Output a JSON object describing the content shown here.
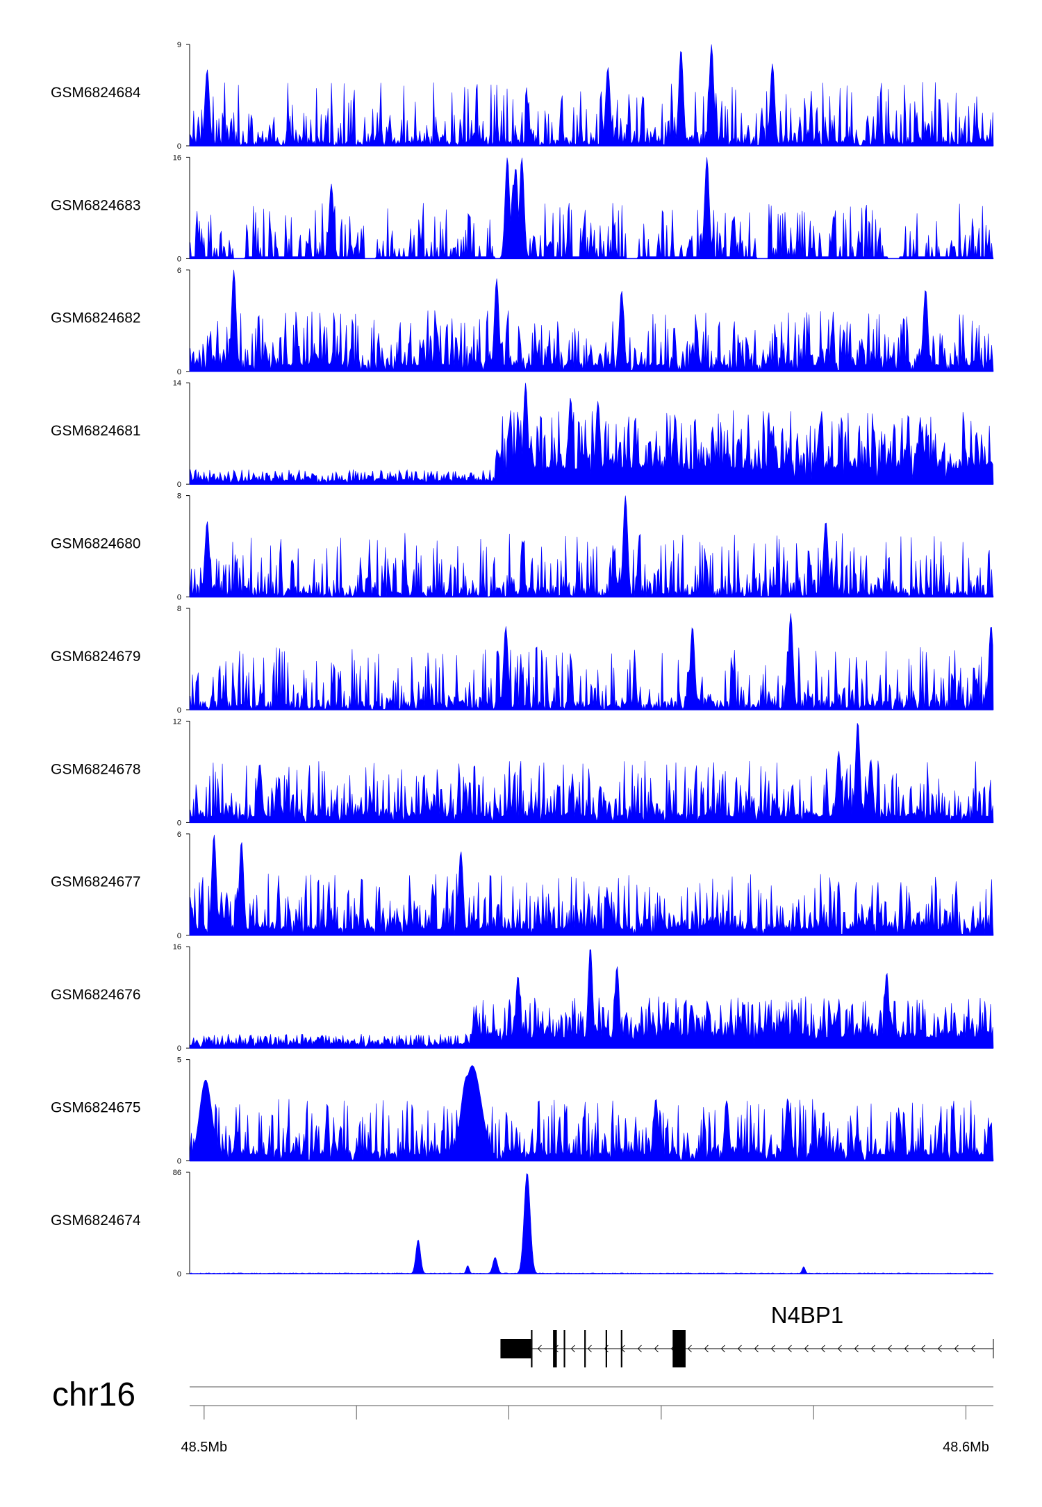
{
  "chart_data": {
    "type": "area",
    "x_unit": "Mb",
    "x_range": [
      48.4981,
      48.6036
    ],
    "color": "#0000ff",
    "tracks": [
      {
        "name": "GSM6824684",
        "ymax": 9,
        "ylim": [
          0,
          9
        ],
        "pattern": "sparse",
        "seed": 11,
        "peaks": [
          [
            48.5626,
            0.0003,
            8.6
          ],
          [
            48.5666,
            0.0003,
            9.0
          ],
          [
            48.5746,
            0.0003,
            7.3
          ],
          [
            48.553,
            0.0003,
            7.0
          ],
          [
            48.5004,
            0.0003,
            6.8
          ]
        ]
      },
      {
        "name": "GSM6824683",
        "ymax": 16,
        "ylim": [
          0,
          16
        ],
        "pattern": "gappy",
        "seed": 23,
        "peaks": [
          [
            48.5398,
            0.0003,
            16.0
          ],
          [
            48.5417,
            0.0003,
            16.0
          ],
          [
            48.5409,
            0.0003,
            14.5
          ],
          [
            48.566,
            0.0003,
            16.0
          ],
          [
            48.5167,
            0.0003,
            11.8
          ],
          [
            48.5406,
            0.0003,
            12.0
          ]
        ]
      },
      {
        "name": "GSM6824682",
        "ymax": 6,
        "ylim": [
          0,
          6
        ],
        "pattern": "dense",
        "seed": 37,
        "peaks": [
          [
            48.5039,
            0.0003,
            6.0
          ],
          [
            48.5384,
            0.0003,
            5.5
          ],
          [
            48.5548,
            0.0003,
            4.8
          ],
          [
            48.5947,
            0.0003,
            4.9
          ]
        ]
      },
      {
        "name": "GSM6824681",
        "ymax": 14,
        "ylim": [
          0,
          14
        ],
        "pattern": "step",
        "seed": 41,
        "step_at": 48.5382,
        "low": 1.2,
        "high": 6.0,
        "peaks": [
          [
            48.5422,
            0.0003,
            14.0
          ],
          [
            48.5481,
            0.0003,
            12.0
          ],
          [
            48.5517,
            0.0003,
            11.5
          ]
        ]
      },
      {
        "name": "GSM6824680",
        "ymax": 8,
        "ylim": [
          0,
          8
        ],
        "pattern": "sparse",
        "seed": 53,
        "peaks": [
          [
            48.5553,
            0.0003,
            8.0
          ],
          [
            48.5004,
            0.0003,
            6.0
          ],
          [
            48.5816,
            0.0003,
            6.0
          ]
        ]
      },
      {
        "name": "GSM6824679",
        "ymax": 8,
        "ylim": [
          0,
          8
        ],
        "pattern": "sparse",
        "seed": 67,
        "peaks": [
          [
            48.577,
            0.0003,
            7.6
          ],
          [
            48.6033,
            0.0003,
            6.7
          ],
          [
            48.5641,
            0.0003,
            6.6
          ],
          [
            48.5396,
            0.0003,
            6.6
          ]
        ]
      },
      {
        "name": "GSM6824678",
        "ymax": 12,
        "ylim": [
          0,
          12
        ],
        "pattern": "dense",
        "seed": 79,
        "peaks": [
          [
            48.5858,
            0.0003,
            12.0
          ],
          [
            48.5833,
            0.0003,
            8.5
          ],
          [
            48.5875,
            0.0003,
            7.5
          ],
          [
            48.5073,
            0.0003,
            7.0
          ]
        ]
      },
      {
        "name": "GSM6824677",
        "ymax": 6,
        "ylim": [
          0,
          6
        ],
        "pattern": "dense",
        "seed": 83,
        "peaks": [
          [
            48.5013,
            0.0003,
            6.0
          ],
          [
            48.5049,
            0.0003,
            5.6
          ],
          [
            48.5337,
            0.0003,
            5.0
          ]
        ]
      },
      {
        "name": "GSM6824676",
        "ymax": 16,
        "ylim": [
          0,
          16
        ],
        "pattern": "step",
        "seed": 97,
        "step_at": 48.5349,
        "low": 1.3,
        "high": 4.8,
        "peaks": [
          [
            48.5507,
            0.0003,
            16.0
          ],
          [
            48.5542,
            0.0003,
            13.0
          ],
          [
            48.5412,
            0.0003,
            11.5
          ],
          [
            48.5896,
            0.0003,
            12.0
          ]
        ]
      },
      {
        "name": "GSM6824675",
        "ymax": 5,
        "ylim": [
          0,
          5
        ],
        "pattern": "dense",
        "seed": 101,
        "peaks": [
          [
            48.5002,
            0.0008,
            4.0
          ],
          [
            48.5352,
            0.0012,
            4.7
          ],
          [
            48.5345,
            0.0008,
            4.2
          ],
          [
            48.5593,
            0.0003,
            3.1
          ],
          [
            48.5766,
            0.0003,
            3.1
          ],
          [
            48.5686,
            0.0003,
            3.0
          ]
        ]
      },
      {
        "name": "GSM6824674",
        "ymax": 86,
        "ylim": [
          0,
          86
        ],
        "pattern": "flat",
        "seed": 113,
        "peaks": [
          [
            48.5281,
            0.0003,
            29.0
          ],
          [
            48.5382,
            0.0003,
            14.0
          ],
          [
            48.5424,
            0.0004,
            86.0
          ],
          [
            48.5346,
            0.0002,
            7.0
          ],
          [
            48.5787,
            0.0002,
            6.0
          ]
        ]
      }
    ],
    "gene": {
      "name": "N4BP1",
      "strand": "-",
      "start": 48.5389,
      "end": 48.6036,
      "utr_blocks": [
        [
          48.5389,
          48.5429
        ]
      ],
      "exons": [
        [
          48.5429,
          48.5431
        ],
        [
          48.5458,
          48.5463
        ],
        [
          48.5472,
          48.5474
        ],
        [
          48.5499,
          48.5501
        ],
        [
          48.5527,
          48.5529
        ],
        [
          48.5547,
          48.5549
        ],
        [
          48.5615,
          48.5632
        ]
      ]
    },
    "chromosome": "chr16",
    "x_ticks": [
      48.5,
      48.52,
      48.54,
      48.56,
      48.58,
      48.6
    ],
    "x_tick_labels": [
      {
        "at": 48.5,
        "text": "48.5Mb"
      },
      {
        "at": 48.6,
        "text": "48.6Mb"
      }
    ]
  }
}
